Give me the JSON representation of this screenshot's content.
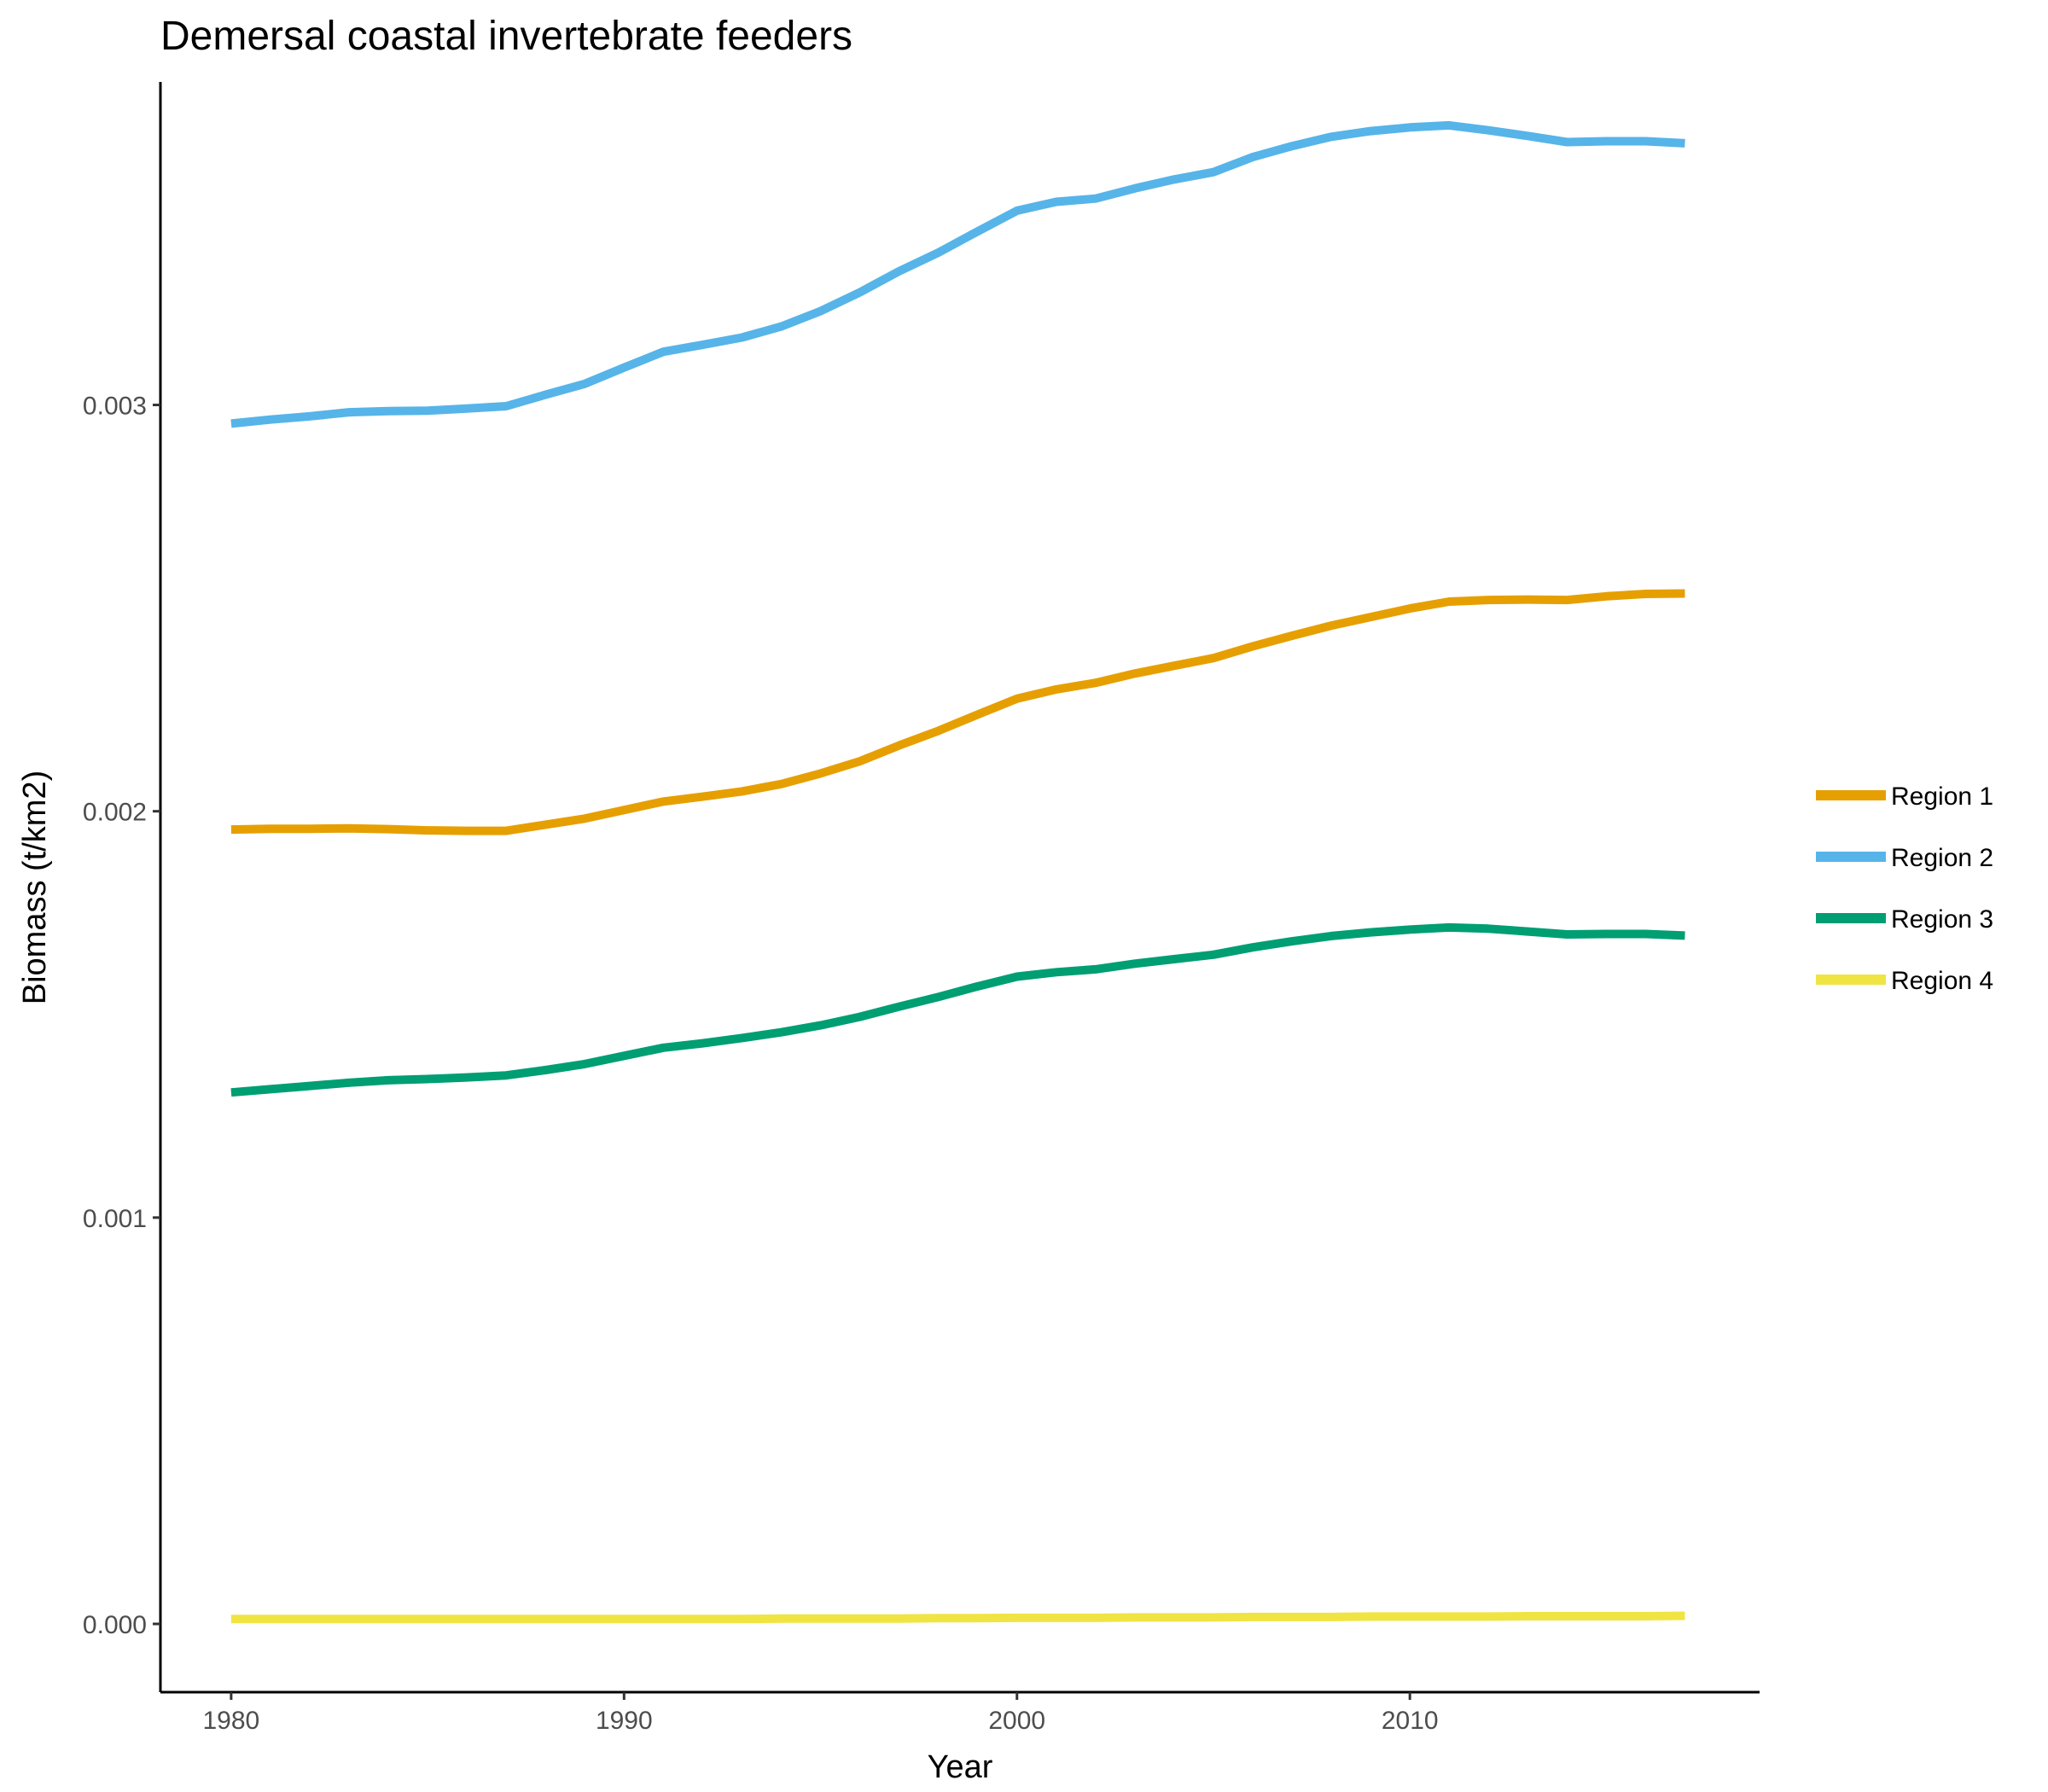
{
  "chart_data": {
    "type": "line",
    "title": "Demersal coastal invertebrate feeders",
    "xlabel": "Year",
    "ylabel": "Biomass (t/km2)",
    "xlim": [
      1978.2,
      2018.9
    ],
    "ylim": [
      -0.000168,
      0.003795
    ],
    "xticks": [
      1980,
      1990,
      2000,
      2010
    ],
    "xtick_labels": [
      "1980",
      "1990",
      "2000",
      "2010"
    ],
    "yticks": [
      0,
      0.001,
      0.002,
      0.003
    ],
    "ytick_labels": [
      "0.000",
      "0.001",
      "0.002",
      "0.003"
    ],
    "grid": false,
    "legend_position": "right",
    "x": [
      1980,
      1981,
      1982,
      1983,
      1984,
      1985,
      1986,
      1987,
      1988,
      1989,
      1990,
      1991,
      1992,
      1993,
      1994,
      1995,
      1996,
      1997,
      1998,
      1999,
      2000,
      2001,
      2002,
      2003,
      2004,
      2005,
      2006,
      2007,
      2008,
      2009,
      2010,
      2011,
      2012,
      2013,
      2014,
      2015,
      2016,
      2017
    ],
    "series": [
      {
        "name": "Region 1",
        "color": "#E69F00",
        "values": [
          0.001955,
          0.001957,
          0.001957,
          0.001958,
          0.001956,
          0.001953,
          0.001952,
          0.001952,
          0.001967,
          0.001982,
          0.002003,
          0.002024,
          0.002036,
          0.002049,
          0.002067,
          0.002093,
          0.002123,
          0.002162,
          0.002198,
          0.002238,
          0.002277,
          0.0023,
          0.002316,
          0.002339,
          0.002358,
          0.002377,
          0.002406,
          0.002432,
          0.002457,
          0.002478,
          0.002499,
          0.002516,
          0.00252,
          0.002521,
          0.00252,
          0.002529,
          0.002535,
          0.002536
        ]
      },
      {
        "name": "Region 2",
        "color": "#56B4E9",
        "values": [
          0.002954,
          0.002964,
          0.002972,
          0.002982,
          0.002985,
          0.002986,
          0.002991,
          0.002997,
          0.003025,
          0.003052,
          0.003092,
          0.003131,
          0.003148,
          0.003166,
          0.003193,
          0.003231,
          0.003277,
          0.003329,
          0.003375,
          0.003427,
          0.003478,
          0.0035,
          0.003508,
          0.003533,
          0.003555,
          0.003573,
          0.00361,
          0.003637,
          0.00366,
          0.003674,
          0.003683,
          0.003688,
          0.003676,
          0.003662,
          0.003647,
          0.003649,
          0.003649,
          0.003644
        ]
      },
      {
        "name": "Region 3",
        "color": "#009E73",
        "values": [
          0.001308,
          0.001316,
          0.001324,
          0.001332,
          0.001338,
          0.001341,
          0.001345,
          0.00135,
          0.001363,
          0.001378,
          0.001398,
          0.001418,
          0.001429,
          0.001442,
          0.001456,
          0.001473,
          0.001494,
          0.001519,
          0.001543,
          0.001569,
          0.001593,
          0.001604,
          0.001611,
          0.001625,
          0.001636,
          0.001647,
          0.001665,
          0.00168,
          0.001693,
          0.001702,
          0.001709,
          0.001714,
          0.001711,
          0.001704,
          0.001697,
          0.001698,
          0.001698,
          0.001694
        ]
      },
      {
        "name": "Region 4",
        "color": "#F0E442",
        "values": [
          1.2e-05,
          1.2e-05,
          1.2e-05,
          1.2e-05,
          1.2e-05,
          1.2e-05,
          1.2e-05,
          1.2e-05,
          1.2e-05,
          1.2e-05,
          1.2e-05,
          1.2e-05,
          1.2e-05,
          1.2e-05,
          1.3e-05,
          1.3e-05,
          1.3e-05,
          1.3e-05,
          1.4e-05,
          1.4e-05,
          1.5e-05,
          1.5e-05,
          1.5e-05,
          1.6e-05,
          1.6e-05,
          1.6e-05,
          1.7e-05,
          1.7e-05,
          1.7e-05,
          1.8e-05,
          1.8e-05,
          1.8e-05,
          1.8e-05,
          1.9e-05,
          1.9e-05,
          1.9e-05,
          1.9e-05,
          2e-05
        ]
      }
    ]
  }
}
